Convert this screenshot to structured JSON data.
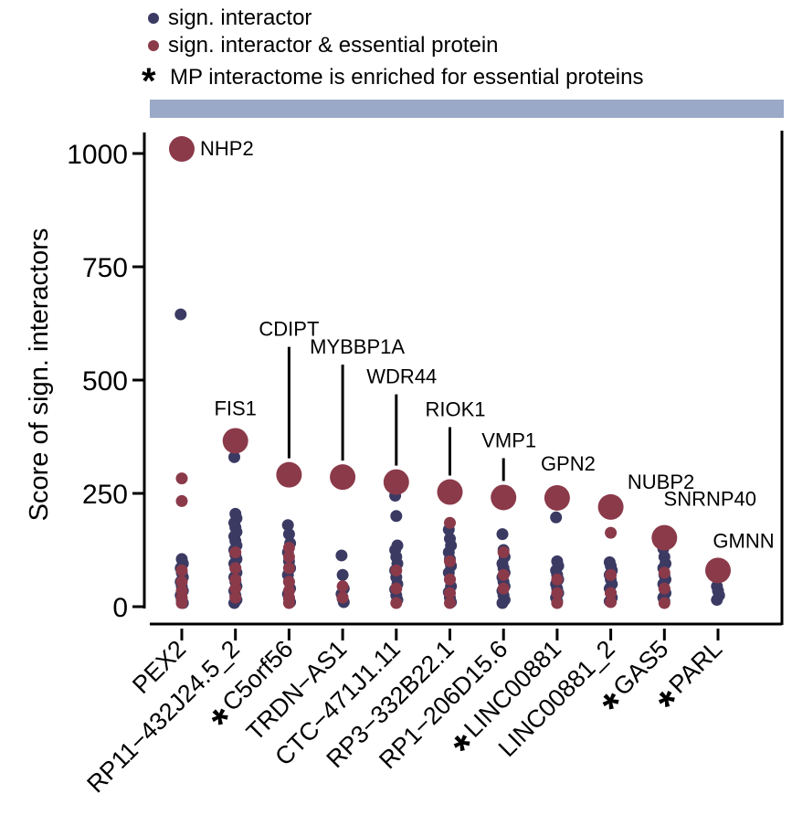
{
  "legend": {
    "items": [
      {
        "symbol": "dot",
        "color": "#3b3a63",
        "label": "sign. interactor"
      },
      {
        "symbol": "dot",
        "color": "#8b3a4a",
        "label": "sign. interactor & essential protein"
      },
      {
        "symbol": "star",
        "glyph": "*",
        "label": "MP interactome is enriched for essential proteins"
      }
    ]
  },
  "colors": {
    "interactor": "#3b3a63",
    "essential": "#8b3a4a",
    "band": "#9aa9c8"
  },
  "chart_data": {
    "type": "scatter",
    "ylabel": "Score of sign. interactors",
    "ylim": [
      0,
      1000
    ],
    "yticks": [
      0,
      250,
      500,
      750,
      1000
    ],
    "legend_position": "top",
    "categories": [
      {
        "label": "PEX2",
        "starred": false
      },
      {
        "label": "RP11−432J24.5_2",
        "starred": false
      },
      {
        "label": "C5orf56",
        "starred": true
      },
      {
        "label": "TRDN−AS1",
        "starred": false
      },
      {
        "label": "CTC−471J1.11",
        "starred": false
      },
      {
        "label": "RP3−332B22.1",
        "starred": false
      },
      {
        "label": "RP1−206D15.6",
        "starred": false
      },
      {
        "label": "LINC00881",
        "starred": true
      },
      {
        "label": "LINC00881_2",
        "starred": false
      },
      {
        "label": "GAS5",
        "starred": true
      },
      {
        "label": "PARL",
        "starred": true
      }
    ],
    "top_hits": [
      {
        "category": 0,
        "label": "NHP2",
        "value": 1010
      },
      {
        "category": 1,
        "label": "FIS1",
        "value": 366
      },
      {
        "category": 2,
        "label": "CDIPT",
        "value": 291
      },
      {
        "category": 3,
        "label": "MYBBP1A",
        "value": 286
      },
      {
        "category": 4,
        "label": "WDR44",
        "value": 275
      },
      {
        "category": 5,
        "label": "RIOK1",
        "value": 253
      },
      {
        "category": 6,
        "label": "VMP1",
        "value": 241
      },
      {
        "category": 7,
        "label": "GPN2",
        "value": 240
      },
      {
        "category": 8,
        "label": "NUBP2",
        "value": 220
      },
      {
        "category": 9,
        "label": "SNRNP40",
        "value": 152
      },
      {
        "category": 10,
        "label": "GMNN",
        "value": 80
      }
    ],
    "interactors": [
      {
        "category": 0,
        "values": [
          645,
          105,
          95,
          85,
          75,
          65,
          55,
          45,
          35,
          25,
          15,
          8
        ]
      },
      {
        "category": 1,
        "values": [
          330,
          205,
          195,
          185,
          175,
          165,
          155,
          145,
          135,
          125,
          115,
          105,
          95,
          85,
          75,
          65,
          55,
          45,
          35,
          25,
          15,
          8
        ]
      },
      {
        "category": 2,
        "values": [
          180,
          160,
          140,
          120,
          100,
          85,
          70,
          55,
          40,
          28,
          18,
          10
        ]
      },
      {
        "category": 3,
        "values": [
          113,
          70,
          40,
          28,
          18,
          10
        ]
      },
      {
        "category": 4,
        "values": [
          245,
          200,
          135,
          125,
          110,
          95,
          80,
          65,
          50,
          38,
          25,
          15
        ]
      },
      {
        "category": 5,
        "values": [
          170,
          150,
          135,
          120,
          105,
          90,
          75,
          60,
          45,
          32,
          20,
          10
        ]
      },
      {
        "category": 6,
        "values": [
          160,
          125,
          110,
          95,
          85,
          75,
          65,
          55,
          45,
          35,
          25,
          15,
          8
        ]
      },
      {
        "category": 7,
        "values": [
          197,
          100,
          90,
          80,
          70,
          60,
          50,
          40,
          30,
          20,
          12
        ]
      },
      {
        "category": 8,
        "values": [
          98,
          90,
          80,
          70,
          60,
          50,
          40,
          30,
          20,
          12
        ]
      },
      {
        "category": 9,
        "values": [
          128,
          110,
          95,
          85,
          70,
          60,
          50,
          40,
          30,
          20,
          12
        ]
      },
      {
        "category": 10,
        "values": [
          45,
          35,
          25,
          15
        ]
      }
    ],
    "essential_interactors": [
      {
        "category": 0,
        "values": [
          283,
          233,
          80,
          55,
          35,
          20,
          8
        ]
      },
      {
        "category": 1,
        "values": [
          120,
          85,
          60,
          40,
          20
        ]
      },
      {
        "category": 2,
        "values": [
          130,
          110,
          85,
          55,
          35,
          20,
          8
        ]
      },
      {
        "category": 3,
        "values": [
          45,
          20
        ]
      },
      {
        "category": 4,
        "values": [
          80,
          40,
          8
        ]
      },
      {
        "category": 5,
        "values": [
          185,
          100,
          60,
          30,
          8
        ]
      },
      {
        "category": 6,
        "values": [
          120,
          70,
          40
        ]
      },
      {
        "category": 7,
        "values": [
          60,
          30,
          8
        ]
      },
      {
        "category": 8,
        "values": [
          163,
          70,
          30,
          10
        ]
      },
      {
        "category": 9,
        "values": [
          75,
          40,
          8
        ]
      },
      {
        "category": 10,
        "values": []
      }
    ]
  }
}
